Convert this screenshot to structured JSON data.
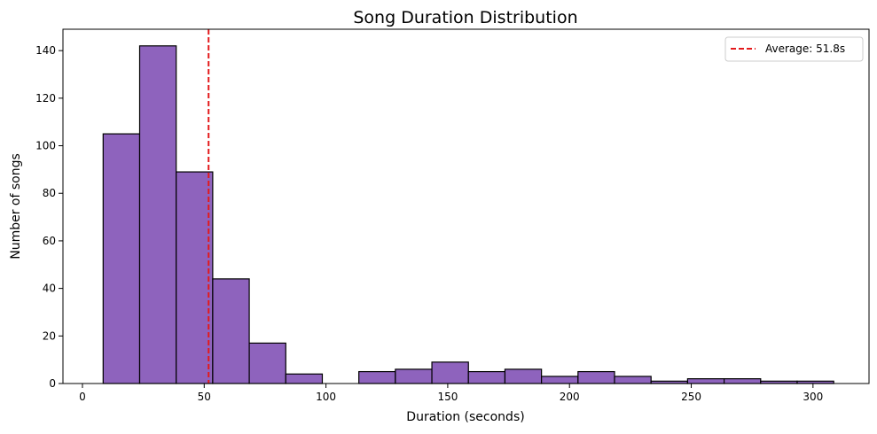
{
  "chart_data": {
    "type": "bar",
    "title": "Song Duration Distribution",
    "xlabel": "Duration (seconds)",
    "ylabel": "Number of songs",
    "xlim": [
      -8,
      323
    ],
    "ylim": [
      0,
      149
    ],
    "xticks": [
      0,
      50,
      100,
      150,
      200,
      250,
      300
    ],
    "yticks": [
      0,
      20,
      40,
      60,
      80,
      100,
      120,
      140
    ],
    "bins": {
      "edges": [
        8.5,
        23.5,
        38.5,
        53.5,
        68.5,
        83.5,
        98.5,
        113.5,
        128.5,
        143.5,
        158.5,
        173.5,
        188.5,
        203.5,
        218.5,
        233.5,
        248.5,
        263.5,
        278.5,
        293.5,
        308.5
      ],
      "counts": [
        105,
        142,
        89,
        44,
        17,
        4,
        0,
        5,
        6,
        9,
        5,
        6,
        3,
        5,
        3,
        1,
        2,
        2,
        1,
        1
      ]
    },
    "bar_color": "#8e63bd",
    "edge_color": "#000000",
    "average_line": {
      "value": 51.8,
      "label": "Average: 51.8s",
      "color": "#e31a1c",
      "style": "dashed"
    },
    "legend_position": "top-right",
    "grid": false
  }
}
